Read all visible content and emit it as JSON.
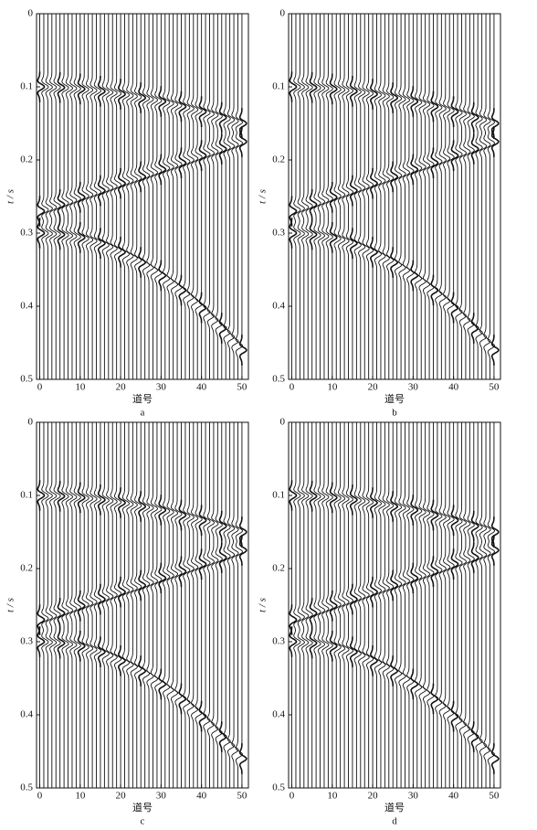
{
  "chart_data": [
    {
      "type": "wiggle",
      "caption": "a",
      "xlabel": "道号",
      "ylabel": "t / s",
      "xlim": [
        -0.8,
        51.6
      ],
      "ylim": [
        0,
        0.5
      ],
      "xticks": [
        0,
        10,
        20,
        30,
        40,
        50
      ],
      "yticks": [
        0,
        0.1,
        0.2,
        0.3,
        0.4,
        0.5
      ],
      "x": [
        0,
        5,
        10,
        15,
        20,
        25,
        30,
        35,
        40,
        45,
        50
      ],
      "series": [
        {
          "color": "#111111",
          "values": [
            0.1,
            0.101,
            0.103,
            0.106,
            0.11,
            0.115,
            0.12,
            0.127,
            0.134,
            0.142,
            0.15
          ]
        },
        {
          "color": "#111111",
          "values": [
            0.27,
            0.261,
            0.251,
            0.242,
            0.232,
            0.223,
            0.213,
            0.204,
            0.194,
            0.185,
            0.175
          ]
        },
        {
          "color": "#111111",
          "values": [
            0.3,
            0.302,
            0.306,
            0.314,
            0.326,
            0.34,
            0.358,
            0.378,
            0.402,
            0.43,
            0.46
          ]
        }
      ]
    },
    {
      "type": "wiggle",
      "caption": "b",
      "xlabel": "道号",
      "ylabel": "t / s",
      "xlim": [
        -0.8,
        51.6
      ],
      "ylim": [
        0,
        0.5
      ],
      "xticks": [
        0,
        10,
        20,
        30,
        40,
        50
      ],
      "yticks": [
        0,
        0.1,
        0.2,
        0.3,
        0.4,
        0.5
      ],
      "x": [
        0,
        5,
        10,
        15,
        20,
        25,
        30,
        35,
        40,
        45,
        50
      ],
      "series": [
        {
          "color": "#111111",
          "values": [
            0.1,
            0.101,
            0.103,
            0.106,
            0.11,
            0.115,
            0.12,
            0.127,
            0.134,
            0.142,
            0.15
          ]
        },
        {
          "color": "#111111",
          "values": [
            0.27,
            0.261,
            0.251,
            0.242,
            0.232,
            0.223,
            0.213,
            0.204,
            0.194,
            0.185,
            0.175
          ]
        },
        {
          "color": "#111111",
          "values": [
            0.3,
            0.302,
            0.306,
            0.314,
            0.326,
            0.34,
            0.358,
            0.378,
            0.402,
            0.43,
            0.46
          ]
        }
      ]
    },
    {
      "type": "wiggle",
      "caption": "c",
      "xlabel": "道号",
      "ylabel": "t / s",
      "xlim": [
        -0.8,
        51.6
      ],
      "ylim": [
        0,
        0.5
      ],
      "xticks": [
        0,
        10,
        20,
        30,
        40,
        50
      ],
      "yticks": [
        0,
        0.1,
        0.2,
        0.3,
        0.4,
        0.5
      ],
      "x": [
        0,
        5,
        10,
        15,
        20,
        25,
        30,
        35,
        40,
        45,
        50
      ],
      "series": [
        {
          "color": "#111111",
          "values": [
            0.1,
            0.101,
            0.103,
            0.106,
            0.11,
            0.115,
            0.12,
            0.127,
            0.134,
            0.142,
            0.15
          ]
        },
        {
          "color": "#111111",
          "values": [
            0.27,
            0.261,
            0.251,
            0.242,
            0.232,
            0.223,
            0.213,
            0.204,
            0.194,
            0.185,
            0.175
          ]
        },
        {
          "color": "#111111",
          "values": [
            0.3,
            0.302,
            0.306,
            0.314,
            0.326,
            0.34,
            0.358,
            0.378,
            0.402,
            0.43,
            0.46
          ]
        }
      ]
    },
    {
      "type": "wiggle",
      "caption": "d",
      "xlabel": "道号",
      "ylabel": "t / s",
      "xlim": [
        -0.8,
        51.6
      ],
      "ylim": [
        0,
        0.5
      ],
      "xticks": [
        0,
        10,
        20,
        30,
        40,
        50
      ],
      "yticks": [
        0,
        0.1,
        0.2,
        0.3,
        0.4,
        0.5
      ],
      "x": [
        0,
        5,
        10,
        15,
        20,
        25,
        30,
        35,
        40,
        45,
        50
      ],
      "series": [
        {
          "color": "#111111",
          "values": [
            0.1,
            0.101,
            0.103,
            0.106,
            0.11,
            0.115,
            0.12,
            0.127,
            0.134,
            0.142,
            0.15
          ]
        },
        {
          "color": "#111111",
          "values": [
            0.27,
            0.261,
            0.251,
            0.242,
            0.232,
            0.223,
            0.213,
            0.204,
            0.194,
            0.185,
            0.175
          ]
        },
        {
          "color": "#111111",
          "values": [
            0.3,
            0.302,
            0.306,
            0.314,
            0.326,
            0.34,
            0.358,
            0.378,
            0.402,
            0.43,
            0.46
          ]
        }
      ]
    }
  ]
}
